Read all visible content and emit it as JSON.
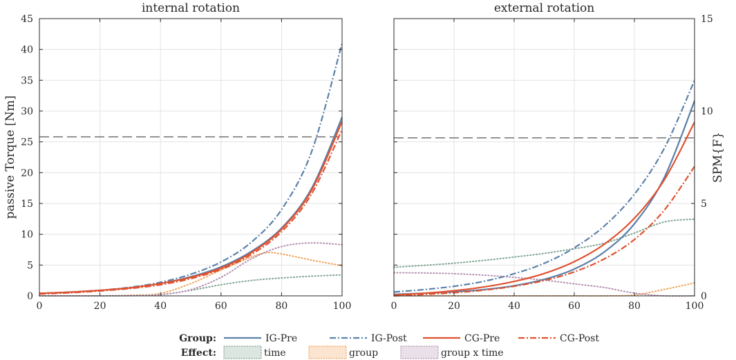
{
  "chart_data": [
    {
      "type": "line",
      "title": "internal rotation",
      "xlabel": "",
      "ylabel": "passive Torque [Nm]",
      "xlim": [
        0,
        100
      ],
      "ylim": [
        0,
        45
      ],
      "xticks": [
        "0",
        "20",
        "40",
        "60",
        "80",
        "100"
      ],
      "yticks": [
        "0",
        "5",
        "10",
        "15",
        "20",
        "25",
        "30",
        "35",
        "40",
        "45"
      ],
      "grid": true,
      "threshold": {
        "axis": "left",
        "value": 25.8
      },
      "series": [
        {
          "name": "IG-Pre",
          "style": "solid",
          "color": "#5b80a8",
          "x": [
            0,
            10,
            20,
            30,
            40,
            50,
            60,
            70,
            80,
            90,
            100
          ],
          "y": [
            0.4,
            0.6,
            0.9,
            1.3,
            2.0,
            3.1,
            4.7,
            7.2,
            11.0,
            17.5,
            29.0
          ]
        },
        {
          "name": "IG-Post",
          "style": "dashdot",
          "color": "#5b80a8",
          "x": [
            0,
            10,
            20,
            30,
            40,
            50,
            60,
            70,
            80,
            90,
            100
          ],
          "y": [
            0.4,
            0.6,
            0.9,
            1.4,
            2.2,
            3.5,
            5.5,
            8.7,
            14.0,
            23.5,
            41.0
          ]
        },
        {
          "name": "CG-Pre",
          "style": "solid",
          "color": "#e0512f",
          "x": [
            0,
            10,
            20,
            30,
            40,
            50,
            60,
            70,
            80,
            90,
            100
          ],
          "y": [
            0.4,
            0.6,
            0.9,
            1.3,
            2.0,
            3.0,
            4.5,
            7.0,
            10.8,
            17.2,
            28.3
          ]
        },
        {
          "name": "CG-Post",
          "style": "dashdot",
          "color": "#e0512f",
          "x": [
            0,
            10,
            20,
            30,
            40,
            50,
            60,
            70,
            80,
            90,
            100
          ],
          "y": [
            0.3,
            0.5,
            0.8,
            1.2,
            1.8,
            2.8,
            4.3,
            6.7,
            10.4,
            16.6,
            27.0
          ]
        }
      ],
      "effects": [
        {
          "name": "time",
          "style": "dotted",
          "color": "#7da48f",
          "x": [
            0,
            10,
            20,
            30,
            40,
            50,
            60,
            70,
            80,
            90,
            100
          ],
          "y": [
            0,
            0,
            0,
            0.05,
            0.2,
            0.9,
            1.8,
            2.5,
            2.9,
            3.2,
            3.4
          ]
        },
        {
          "name": "group",
          "style": "dotted",
          "color": "#f0a35a",
          "x": [
            0,
            10,
            20,
            30,
            40,
            50,
            60,
            70,
            75,
            80,
            90,
            100
          ],
          "y": [
            0,
            0,
            0,
            0.1,
            0.4,
            2.0,
            4.2,
            6.3,
            7.0,
            6.8,
            5.8,
            4.9
          ]
        },
        {
          "name": "group x time",
          "style": "dotted",
          "color": "#b48fb1",
          "x": [
            0,
            10,
            20,
            30,
            40,
            50,
            60,
            70,
            80,
            90,
            100
          ],
          "y": [
            0,
            0,
            0,
            0.05,
            0.2,
            1.0,
            3.0,
            6.0,
            8.0,
            8.6,
            8.3
          ]
        }
      ]
    },
    {
      "type": "line",
      "title": "external rotation",
      "xlabel": "",
      "ylabel": "SPM{F}",
      "xlim": [
        0,
        100
      ],
      "ylim": [
        0,
        15
      ],
      "xticks": [
        "0",
        "20",
        "40",
        "60",
        "80",
        "100"
      ],
      "yticks": [
        "0",
        "5",
        "10",
        "15"
      ],
      "grid": true,
      "threshold": {
        "axis": "right",
        "value": 8.55
      },
      "series": [
        {
          "name": "IG-Pre",
          "style": "solid",
          "color": "#5b80a8",
          "x": [
            0,
            10,
            20,
            30,
            40,
            50,
            60,
            70,
            80,
            90,
            100
          ],
          "y": [
            0.08,
            0.14,
            0.22,
            0.34,
            0.55,
            0.89,
            1.45,
            2.38,
            3.9,
            6.42,
            10.55
          ]
        },
        {
          "name": "IG-Post",
          "style": "dashdot",
          "color": "#5b80a8",
          "x": [
            0,
            10,
            20,
            30,
            40,
            50,
            60,
            70,
            80,
            90,
            100
          ],
          "y": [
            0.21,
            0.34,
            0.52,
            0.79,
            1.2,
            1.76,
            2.6,
            3.78,
            5.5,
            8.0,
            11.66
          ]
        },
        {
          "name": "CG-Pre",
          "style": "solid",
          "color": "#e0512f",
          "x": [
            0,
            10,
            20,
            30,
            40,
            50,
            60,
            70,
            80,
            90,
            100
          ],
          "y": [
            0.05,
            0.14,
            0.28,
            0.48,
            0.78,
            1.21,
            1.85,
            2.8,
            4.2,
            6.29,
            9.4
          ]
        },
        {
          "name": "CG-Post",
          "style": "dashdot",
          "color": "#e0512f",
          "x": [
            0,
            10,
            20,
            30,
            40,
            50,
            60,
            70,
            80,
            90,
            100
          ],
          "y": [
            0,
            0.08,
            0.17,
            0.31,
            0.52,
            0.83,
            1.3,
            2.0,
            3.05,
            4.65,
            7.0
          ]
        }
      ],
      "effects": [
        {
          "name": "time",
          "style": "dotted",
          "color": "#7da48f",
          "x": [
            0,
            10,
            20,
            30,
            40,
            50,
            60,
            70,
            80,
            90,
            100
          ],
          "y": [
            1.55,
            1.65,
            1.77,
            1.92,
            2.1,
            2.3,
            2.55,
            2.85,
            3.4,
            4.0,
            4.15
          ]
        },
        {
          "name": "group",
          "style": "dotted",
          "color": "#f0a35a",
          "x": [
            0,
            10,
            20,
            30,
            40,
            50,
            60,
            70,
            80,
            90,
            100
          ],
          "y": [
            0,
            0,
            0,
            0,
            0,
            0,
            0,
            0,
            0.05,
            0.35,
            0.7
          ]
        },
        {
          "name": "group x time",
          "style": "dotted",
          "color": "#b48fb1",
          "x": [
            0,
            10,
            20,
            30,
            40,
            50,
            60,
            70,
            80,
            90,
            100
          ],
          "y": [
            1.25,
            1.24,
            1.2,
            1.12,
            1.0,
            0.85,
            0.65,
            0.45,
            0.15,
            0,
            0
          ]
        }
      ]
    }
  ],
  "legend": {
    "group_heading": "Group:",
    "effect_heading": "Effect:",
    "group_items": [
      "IG-Pre",
      "IG-Post",
      "CG-Pre",
      "CG-Post"
    ],
    "effect_items": [
      "time",
      "group",
      "group x time"
    ]
  },
  "colors": {
    "ig": "#5b80a8",
    "cg": "#e0512f",
    "time": "#7da48f",
    "group": "#f0a35a",
    "group_x_time": "#b48fb1",
    "threshold": "#555555",
    "grid": "#e3e3e3"
  }
}
